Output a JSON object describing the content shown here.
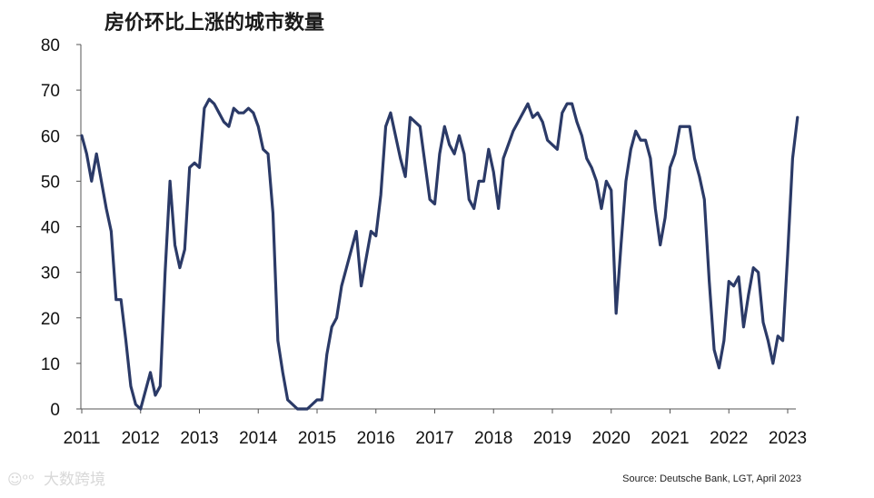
{
  "chart_data": {
    "type": "line",
    "title": "房价环比上涨的城市数量",
    "xlabel": "",
    "ylabel": "",
    "ylim": [
      0,
      80
    ],
    "yticks": [
      0,
      10,
      20,
      30,
      40,
      50,
      60,
      70,
      80
    ],
    "x_tick_labels": [
      "2011",
      "2012",
      "2013",
      "2014",
      "2015",
      "2016",
      "2017",
      "2018",
      "2019",
      "2020",
      "2021",
      "2022",
      "2023"
    ],
    "x_start": "2011-01",
    "grid": false,
    "legend": "none",
    "series": [
      {
        "color": "#2b3a67",
        "values": [
          60,
          56,
          50,
          56,
          50,
          44,
          39,
          24,
          24,
          15,
          5,
          1,
          0,
          4,
          8,
          3,
          5,
          30,
          50,
          36,
          31,
          35,
          53,
          54,
          53,
          66,
          68,
          67,
          65,
          63,
          62,
          66,
          65,
          65,
          66,
          65,
          62,
          57,
          56,
          43,
          15,
          8,
          2,
          1,
          0,
          0,
          0,
          1,
          2,
          2,
          12,
          18,
          20,
          27,
          31,
          35,
          39,
          27,
          33,
          39,
          38,
          47,
          62,
          65,
          60,
          55,
          51,
          64,
          63,
          62,
          54,
          46,
          45,
          56,
          62,
          58,
          56,
          60,
          56,
          46,
          44,
          50,
          50,
          57,
          52,
          44,
          55,
          58,
          61,
          63,
          65,
          67,
          64,
          65,
          63,
          59,
          58,
          57,
          65,
          67,
          67,
          63,
          60,
          55,
          53,
          50,
          44,
          50,
          48,
          21,
          36,
          50,
          57,
          61,
          59,
          59,
          55,
          44,
          36,
          42,
          53,
          56,
          62,
          62,
          62,
          55,
          51,
          46,
          28,
          13,
          9,
          15,
          28,
          27,
          29,
          18,
          25,
          31,
          30,
          19,
          15,
          10,
          16,
          15,
          34,
          55,
          64
        ]
      }
    ]
  },
  "source_text": "Source: Deutsche Bank, LGT, April 2023",
  "watermark_text": "大数跨境",
  "colors": {
    "line": "#2b3a67",
    "axis": "#555555"
  }
}
